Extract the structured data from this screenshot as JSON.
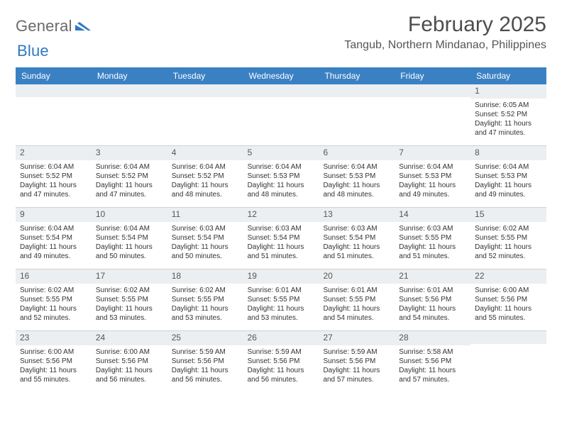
{
  "brand": {
    "text_a": "General",
    "text_b": "Blue",
    "color_gray": "#6a6a6a",
    "color_blue": "#2f78c2"
  },
  "header": {
    "month_title": "February 2025",
    "location": "Tangub, Northern Mindanao, Philippines"
  },
  "style": {
    "header_bg": "#3a81c4",
    "header_text": "#ffffff",
    "daynum_bg": "#eceff1",
    "border_color": "#d0d0d0",
    "page_bg": "#ffffff"
  },
  "days_of_week": [
    "Sunday",
    "Monday",
    "Tuesday",
    "Wednesday",
    "Thursday",
    "Friday",
    "Saturday"
  ],
  "weeks": [
    [
      {
        "n": "",
        "sunrise": "",
        "sunset": "",
        "daylight": ""
      },
      {
        "n": "",
        "sunrise": "",
        "sunset": "",
        "daylight": ""
      },
      {
        "n": "",
        "sunrise": "",
        "sunset": "",
        "daylight": ""
      },
      {
        "n": "",
        "sunrise": "",
        "sunset": "",
        "daylight": ""
      },
      {
        "n": "",
        "sunrise": "",
        "sunset": "",
        "daylight": ""
      },
      {
        "n": "",
        "sunrise": "",
        "sunset": "",
        "daylight": ""
      },
      {
        "n": "1",
        "sunrise": "Sunrise: 6:05 AM",
        "sunset": "Sunset: 5:52 PM",
        "daylight": "Daylight: 11 hours and 47 minutes."
      }
    ],
    [
      {
        "n": "2",
        "sunrise": "Sunrise: 6:04 AM",
        "sunset": "Sunset: 5:52 PM",
        "daylight": "Daylight: 11 hours and 47 minutes."
      },
      {
        "n": "3",
        "sunrise": "Sunrise: 6:04 AM",
        "sunset": "Sunset: 5:52 PM",
        "daylight": "Daylight: 11 hours and 47 minutes."
      },
      {
        "n": "4",
        "sunrise": "Sunrise: 6:04 AM",
        "sunset": "Sunset: 5:52 PM",
        "daylight": "Daylight: 11 hours and 48 minutes."
      },
      {
        "n": "5",
        "sunrise": "Sunrise: 6:04 AM",
        "sunset": "Sunset: 5:53 PM",
        "daylight": "Daylight: 11 hours and 48 minutes."
      },
      {
        "n": "6",
        "sunrise": "Sunrise: 6:04 AM",
        "sunset": "Sunset: 5:53 PM",
        "daylight": "Daylight: 11 hours and 48 minutes."
      },
      {
        "n": "7",
        "sunrise": "Sunrise: 6:04 AM",
        "sunset": "Sunset: 5:53 PM",
        "daylight": "Daylight: 11 hours and 49 minutes."
      },
      {
        "n": "8",
        "sunrise": "Sunrise: 6:04 AM",
        "sunset": "Sunset: 5:53 PM",
        "daylight": "Daylight: 11 hours and 49 minutes."
      }
    ],
    [
      {
        "n": "9",
        "sunrise": "Sunrise: 6:04 AM",
        "sunset": "Sunset: 5:54 PM",
        "daylight": "Daylight: 11 hours and 49 minutes."
      },
      {
        "n": "10",
        "sunrise": "Sunrise: 6:04 AM",
        "sunset": "Sunset: 5:54 PM",
        "daylight": "Daylight: 11 hours and 50 minutes."
      },
      {
        "n": "11",
        "sunrise": "Sunrise: 6:03 AM",
        "sunset": "Sunset: 5:54 PM",
        "daylight": "Daylight: 11 hours and 50 minutes."
      },
      {
        "n": "12",
        "sunrise": "Sunrise: 6:03 AM",
        "sunset": "Sunset: 5:54 PM",
        "daylight": "Daylight: 11 hours and 51 minutes."
      },
      {
        "n": "13",
        "sunrise": "Sunrise: 6:03 AM",
        "sunset": "Sunset: 5:54 PM",
        "daylight": "Daylight: 11 hours and 51 minutes."
      },
      {
        "n": "14",
        "sunrise": "Sunrise: 6:03 AM",
        "sunset": "Sunset: 5:55 PM",
        "daylight": "Daylight: 11 hours and 51 minutes."
      },
      {
        "n": "15",
        "sunrise": "Sunrise: 6:02 AM",
        "sunset": "Sunset: 5:55 PM",
        "daylight": "Daylight: 11 hours and 52 minutes."
      }
    ],
    [
      {
        "n": "16",
        "sunrise": "Sunrise: 6:02 AM",
        "sunset": "Sunset: 5:55 PM",
        "daylight": "Daylight: 11 hours and 52 minutes."
      },
      {
        "n": "17",
        "sunrise": "Sunrise: 6:02 AM",
        "sunset": "Sunset: 5:55 PM",
        "daylight": "Daylight: 11 hours and 53 minutes."
      },
      {
        "n": "18",
        "sunrise": "Sunrise: 6:02 AM",
        "sunset": "Sunset: 5:55 PM",
        "daylight": "Daylight: 11 hours and 53 minutes."
      },
      {
        "n": "19",
        "sunrise": "Sunrise: 6:01 AM",
        "sunset": "Sunset: 5:55 PM",
        "daylight": "Daylight: 11 hours and 53 minutes."
      },
      {
        "n": "20",
        "sunrise": "Sunrise: 6:01 AM",
        "sunset": "Sunset: 5:55 PM",
        "daylight": "Daylight: 11 hours and 54 minutes."
      },
      {
        "n": "21",
        "sunrise": "Sunrise: 6:01 AM",
        "sunset": "Sunset: 5:56 PM",
        "daylight": "Daylight: 11 hours and 54 minutes."
      },
      {
        "n": "22",
        "sunrise": "Sunrise: 6:00 AM",
        "sunset": "Sunset: 5:56 PM",
        "daylight": "Daylight: 11 hours and 55 minutes."
      }
    ],
    [
      {
        "n": "23",
        "sunrise": "Sunrise: 6:00 AM",
        "sunset": "Sunset: 5:56 PM",
        "daylight": "Daylight: 11 hours and 55 minutes."
      },
      {
        "n": "24",
        "sunrise": "Sunrise: 6:00 AM",
        "sunset": "Sunset: 5:56 PM",
        "daylight": "Daylight: 11 hours and 56 minutes."
      },
      {
        "n": "25",
        "sunrise": "Sunrise: 5:59 AM",
        "sunset": "Sunset: 5:56 PM",
        "daylight": "Daylight: 11 hours and 56 minutes."
      },
      {
        "n": "26",
        "sunrise": "Sunrise: 5:59 AM",
        "sunset": "Sunset: 5:56 PM",
        "daylight": "Daylight: 11 hours and 56 minutes."
      },
      {
        "n": "27",
        "sunrise": "Sunrise: 5:59 AM",
        "sunset": "Sunset: 5:56 PM",
        "daylight": "Daylight: 11 hours and 57 minutes."
      },
      {
        "n": "28",
        "sunrise": "Sunrise: 5:58 AM",
        "sunset": "Sunset: 5:56 PM",
        "daylight": "Daylight: 11 hours and 57 minutes."
      },
      {
        "n": "",
        "sunrise": "",
        "sunset": "",
        "daylight": ""
      }
    ]
  ]
}
